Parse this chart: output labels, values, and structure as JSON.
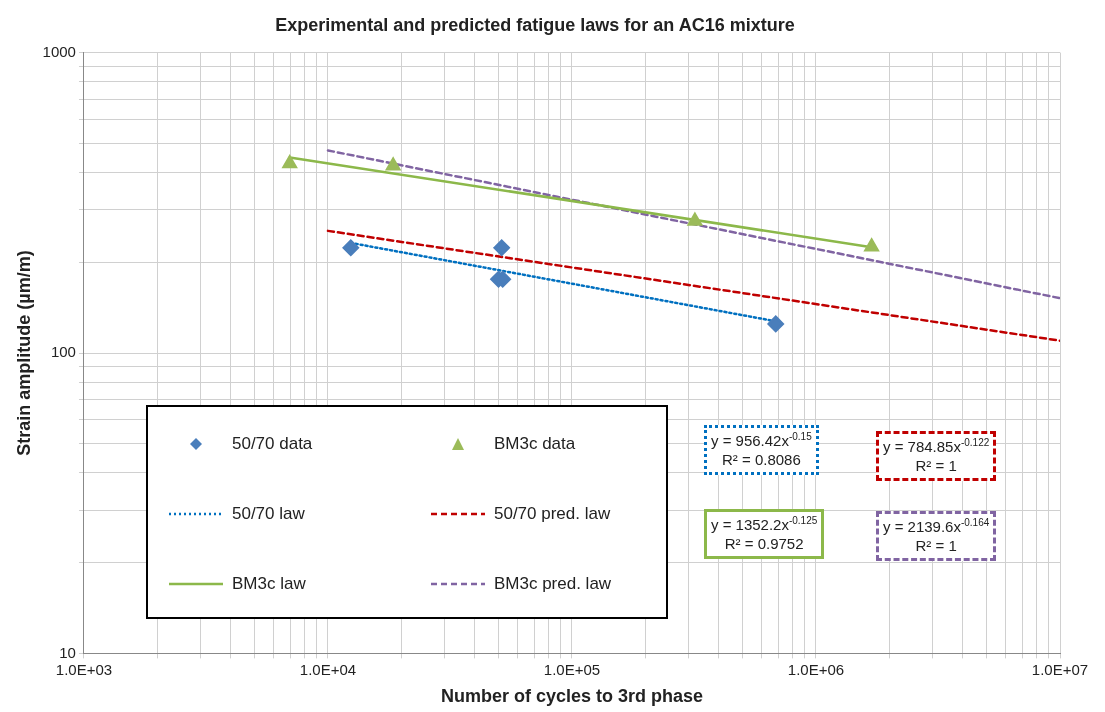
{
  "chart_data": {
    "type": "scatter",
    "title": "Experimental and predicted fatigue laws for an AC16 mixture",
    "xlabel": "Number of cycles to 3rd phase",
    "ylabel": "Strain amplitude (µm/m)",
    "log": "xy",
    "grid": true,
    "legend": "bottom left",
    "xlim": [
      1000,
      10000000
    ],
    "xticks": [
      {
        "value": 1000,
        "label": "1.0E+03"
      },
      {
        "value": 2000,
        "label": null
      },
      {
        "value": 3000,
        "label": null
      },
      {
        "value": 4000,
        "label": null
      },
      {
        "value": 5000,
        "label": null
      },
      {
        "value": 6000,
        "label": null
      },
      {
        "value": 7000,
        "label": null
      },
      {
        "value": 8000,
        "label": null
      },
      {
        "value": 9000,
        "label": null
      },
      {
        "value": 10000,
        "label": "1.0E+04"
      },
      {
        "value": 20000,
        "label": null
      },
      {
        "value": 30000,
        "label": null
      },
      {
        "value": 40000,
        "label": null
      },
      {
        "value": 50000,
        "label": null
      },
      {
        "value": 60000,
        "label": null
      },
      {
        "value": 70000,
        "label": null
      },
      {
        "value": 80000,
        "label": null
      },
      {
        "value": 90000,
        "label": null
      },
      {
        "value": 100000,
        "label": "1.0E+05"
      },
      {
        "value": 200000,
        "label": null
      },
      {
        "value": 300000,
        "label": null
      },
      {
        "value": 400000,
        "label": null
      },
      {
        "value": 500000,
        "label": null
      },
      {
        "value": 600000,
        "label": null
      },
      {
        "value": 700000,
        "label": null
      },
      {
        "value": 800000,
        "label": null
      },
      {
        "value": 900000,
        "label": null
      },
      {
        "value": 1000000,
        "label": "1.0E+06"
      },
      {
        "value": 2000000,
        "label": null
      },
      {
        "value": 3000000,
        "label": null
      },
      {
        "value": 4000000,
        "label": null
      },
      {
        "value": 5000000,
        "label": null
      },
      {
        "value": 6000000,
        "label": null
      },
      {
        "value": 7000000,
        "label": null
      },
      {
        "value": 8000000,
        "label": null
      },
      {
        "value": 9000000,
        "label": null
      },
      {
        "value": 10000000,
        "label": "1.0E+07"
      }
    ],
    "ylim": [
      10,
      1000
    ],
    "yticks": [
      10,
      {
        "value": 20,
        "label": null
      },
      {
        "value": 30,
        "label": null
      },
      {
        "value": 40,
        "label": null
      },
      {
        "value": 50,
        "label": null
      },
      {
        "value": 60,
        "label": null
      },
      {
        "value": 70,
        "label": null
      },
      {
        "value": 80,
        "label": null
      },
      {
        "value": 90,
        "label": null
      },
      100,
      {
        "value": 200,
        "label": null
      },
      {
        "value": 300,
        "label": null
      },
      {
        "value": 400,
        "label": null
      },
      {
        "value": 500,
        "label": null
      },
      {
        "value": 600,
        "label": null
      },
      {
        "value": 700,
        "label": null
      },
      {
        "value": 800,
        "label": null
      },
      {
        "value": 900,
        "label": null
      },
      1000
    ],
    "series": [
      {
        "name": "50/70 data",
        "marker": "diamond",
        "color": "#4a7ebb",
        "x": [
          12400,
          51500,
          50000,
          52000,
          684000
        ],
        "values": [
          224,
          224,
          176,
          176,
          125
        ]
      },
      {
        "name": "BM3c data",
        "marker": "triangle",
        "color": "#9bbb59",
        "x": [
          6970,
          18500,
          319000,
          1690000
        ],
        "values": [
          427,
          420,
          275,
          226
        ]
      },
      {
        "name": "50/70 law",
        "type": "line",
        "marker": "none",
        "line_style": "dotted",
        "color": "#0070c0",
        "x": [
          12400,
          684000
        ],
        "values": [
          232.6,
          127.5
        ]
      },
      {
        "name": "50/70 pred. law",
        "type": "line",
        "marker": "none",
        "line_style": "dashed",
        "color": "#c00000",
        "x": [
          10000,
          10000000
        ],
        "values": [
          255,
          109.9
        ]
      },
      {
        "name": "BM3c law",
        "type": "line",
        "marker": "none",
        "line_style": "solid",
        "color": "#8cb84a",
        "x": [
          6970,
          1690000
        ],
        "values": [
          447.6,
          225
        ]
      },
      {
        "name": "BM3c pred. law",
        "type": "line",
        "marker": "none",
        "line_style": "dashed",
        "color": "#8064a2",
        "x": [
          10000,
          10000000
        ],
        "values": [
          472.4,
          152.2
        ]
      }
    ],
    "annotations": [
      "y = 956.42x$^{-0.15}$\nR² = 0.8086",
      "y = 784.85x$^{-0.122}$\nR² = 1",
      "y = 1352.2x$^{-0.125}$\nR² = 0.9752",
      "y = 2139.6x$^{-0.164}$\nR² = 1"
    ]
  }
}
